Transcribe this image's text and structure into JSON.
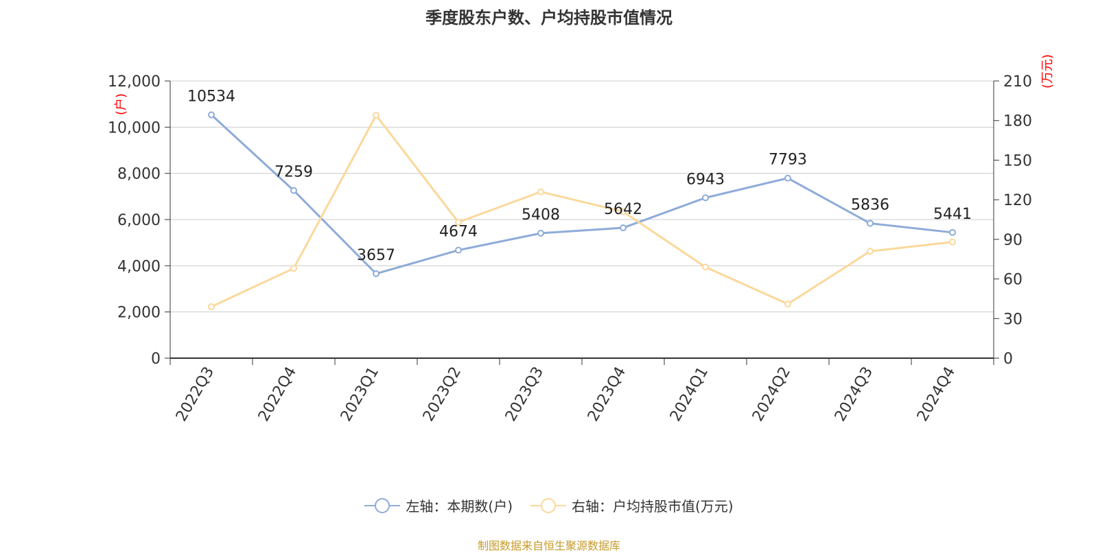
{
  "chart_data": {
    "type": "line",
    "title": "季度股东户数、户均持股市值情况",
    "categories": [
      "2022Q3",
      "2022Q4",
      "2023Q1",
      "2023Q2",
      "2023Q3",
      "2023Q4",
      "2024Q1",
      "2024Q2",
      "2024Q3",
      "2024Q4"
    ],
    "series": [
      {
        "name": "左轴：本期数(户)",
        "axis": "left",
        "color": "#8eabd8",
        "values": [
          10534,
          7259,
          3657,
          4674,
          5408,
          5642,
          6943,
          7793,
          5836,
          5441
        ],
        "data_labels": [
          "10534",
          "7259",
          "3657",
          "4674",
          "5408",
          "5642",
          "6943",
          "7793",
          "5836",
          "5441"
        ]
      },
      {
        "name": "右轴：户均持股市值(万元)",
        "axis": "right",
        "color": "#fbd89a",
        "values": [
          39,
          68,
          184,
          103,
          126,
          111,
          69,
          41,
          81,
          88
        ]
      }
    ],
    "left_axis": {
      "unit_label": "(户)",
      "ylim": [
        0,
        12000
      ],
      "ticks": [
        0,
        2000,
        4000,
        6000,
        8000,
        10000,
        12000
      ],
      "tick_labels": [
        "0",
        "2,000",
        "4,000",
        "6,000",
        "8,000",
        "10,000",
        "12,000"
      ]
    },
    "right_axis": {
      "unit_label": "(万元)",
      "ylim": [
        0,
        210
      ],
      "ticks": [
        0,
        30,
        60,
        90,
        120,
        150,
        180,
        210
      ],
      "tick_labels": [
        "0",
        "30",
        "60",
        "90",
        "120",
        "150",
        "180",
        "210"
      ]
    },
    "grid": true,
    "legend_position": "bottom-center",
    "unit_color": "#ff0000",
    "source": "制图数据来自恒生聚源数据库"
  }
}
